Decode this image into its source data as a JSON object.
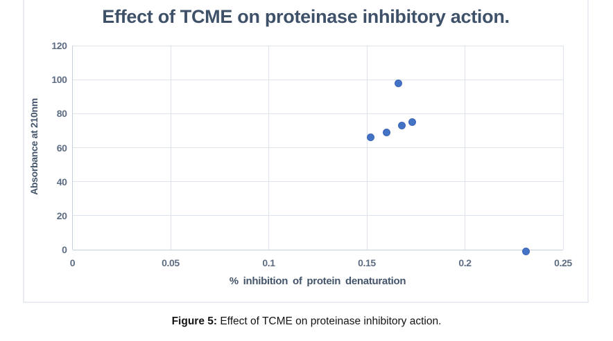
{
  "figure": {
    "caption_label": "Figure 5:",
    "caption_text": " Effect of TCME on proteinase inhibitory action."
  },
  "chart_data": {
    "type": "scatter",
    "title": "Effect of TCME on proteinase inhibitory action.",
    "xlabel": "% inhibition of protein denaturation",
    "ylabel": "Absorbance at 210nm",
    "xlim": [
      0,
      0.25
    ],
    "ylim": [
      0,
      120
    ],
    "x_ticks": [
      0,
      0.05,
      0.1,
      0.15,
      0.2,
      0.25
    ],
    "x_tick_labels": [
      "0",
      "0.05",
      "0.1",
      "0.15",
      "0.2",
      "0.25"
    ],
    "y_ticks": [
      0,
      20,
      40,
      60,
      80,
      100,
      120
    ],
    "y_tick_labels": [
      "0",
      "20",
      "40",
      "60",
      "80",
      "100",
      "120"
    ],
    "grid": true,
    "legend": "none",
    "marker_color": "#4472C4",
    "points": [
      {
        "x": 0.152,
        "y": 66
      },
      {
        "x": 0.16,
        "y": 69
      },
      {
        "x": 0.166,
        "y": 98
      },
      {
        "x": 0.168,
        "y": 73
      },
      {
        "x": 0.173,
        "y": 75
      },
      {
        "x": 0.231,
        "y": -1
      }
    ]
  },
  "colors": {
    "title_text": "#3e5169",
    "axis_text": "#44546a",
    "tick_text": "#5d6c82",
    "gridline": "#dde3ec",
    "frame_border": "#e9edf3",
    "marker": "#4472C4"
  }
}
